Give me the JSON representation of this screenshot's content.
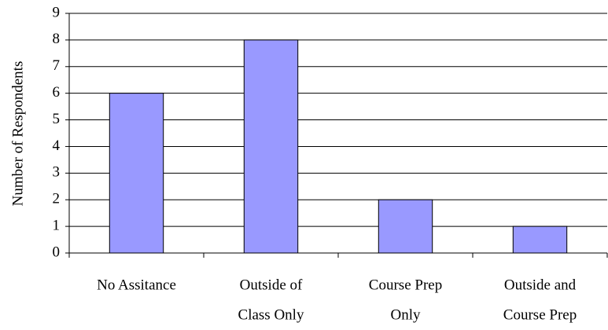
{
  "chart_data": {
    "type": "bar",
    "y_label": "Number of Respondents",
    "categories": [
      [
        "No Assitance"
      ],
      [
        "Outside of",
        "Class Only"
      ],
      [
        "Course Prep",
        "Only"
      ],
      [
        "Outside and",
        "Course Prep"
      ]
    ],
    "values": [
      6,
      8,
      2,
      1
    ],
    "color": "#9999ff",
    "ylim": [
      0,
      9
    ],
    "yticks": [
      0,
      1,
      2,
      3,
      4,
      5,
      6,
      7,
      8,
      9
    ],
    "grid": true
  }
}
